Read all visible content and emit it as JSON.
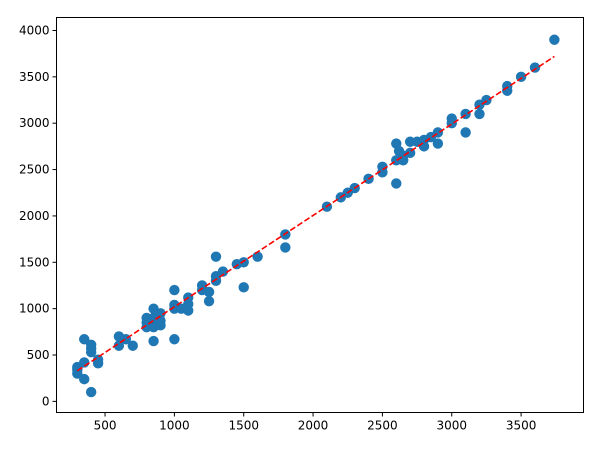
{
  "chart_data": {
    "type": "scatter",
    "title": "",
    "xlabel": "",
    "ylabel": "",
    "xlim": [
      150,
      3950
    ],
    "ylim": [
      -120,
      4140
    ],
    "xticks": [
      500,
      1000,
      1500,
      2000,
      2500,
      3000,
      3500
    ],
    "yticks": [
      0,
      500,
      1000,
      1500,
      2000,
      2500,
      3000,
      3500,
      4000
    ],
    "grid": false,
    "point_color": "#1f77b4",
    "line_color": "#ff0000",
    "points": [
      [
        300,
        300
      ],
      [
        300,
        340
      ],
      [
        300,
        370
      ],
      [
        350,
        240
      ],
      [
        350,
        420
      ],
      [
        350,
        670
      ],
      [
        400,
        100
      ],
      [
        400,
        530
      ],
      [
        400,
        570
      ],
      [
        400,
        610
      ],
      [
        450,
        410
      ],
      [
        450,
        450
      ],
      [
        600,
        600
      ],
      [
        600,
        700
      ],
      [
        650,
        670
      ],
      [
        700,
        600
      ],
      [
        800,
        800
      ],
      [
        800,
        850
      ],
      [
        800,
        900
      ],
      [
        850,
        650
      ],
      [
        850,
        800
      ],
      [
        850,
        900
      ],
      [
        850,
        1000
      ],
      [
        870,
        950
      ],
      [
        900,
        820
      ],
      [
        900,
        870
      ],
      [
        900,
        950
      ],
      [
        1000,
        670
      ],
      [
        1000,
        1000
      ],
      [
        1000,
        1040
      ],
      [
        1000,
        1200
      ],
      [
        1050,
        1000
      ],
      [
        1100,
        980
      ],
      [
        1100,
        1050
      ],
      [
        1100,
        1120
      ],
      [
        1200,
        1200
      ],
      [
        1200,
        1250
      ],
      [
        1250,
        1080
      ],
      [
        1250,
        1180
      ],
      [
        1300,
        1300
      ],
      [
        1300,
        1350
      ],
      [
        1300,
        1560
      ],
      [
        1350,
        1400
      ],
      [
        1450,
        1480
      ],
      [
        1500,
        1230
      ],
      [
        1500,
        1500
      ],
      [
        1600,
        1560
      ],
      [
        1800,
        1660
      ],
      [
        1800,
        1800
      ],
      [
        2100,
        2100
      ],
      [
        2200,
        2200
      ],
      [
        2250,
        2250
      ],
      [
        2300,
        2300
      ],
      [
        2400,
        2400
      ],
      [
        2500,
        2470
      ],
      [
        2500,
        2530
      ],
      [
        2600,
        2350
      ],
      [
        2600,
        2600
      ],
      [
        2600,
        2780
      ],
      [
        2620,
        2700
      ],
      [
        2650,
        2650
      ],
      [
        2650,
        2600
      ],
      [
        2700,
        2680
      ],
      [
        2700,
        2800
      ],
      [
        2750,
        2800
      ],
      [
        2800,
        2750
      ],
      [
        2800,
        2820
      ],
      [
        2850,
        2850
      ],
      [
        2900,
        2780
      ],
      [
        2900,
        2900
      ],
      [
        3000,
        3000
      ],
      [
        3000,
        3050
      ],
      [
        3100,
        2900
      ],
      [
        3100,
        3100
      ],
      [
        3200,
        3100
      ],
      [
        3200,
        3200
      ],
      [
        3250,
        3250
      ],
      [
        3400,
        3350
      ],
      [
        3400,
        3400
      ],
      [
        3500,
        3500
      ],
      [
        3600,
        3600
      ],
      [
        3740,
        3900
      ]
    ],
    "fit_line": {
      "x": [
        300,
        3740
      ],
      "y": [
        330,
        3720
      ],
      "style": "dashed"
    }
  }
}
